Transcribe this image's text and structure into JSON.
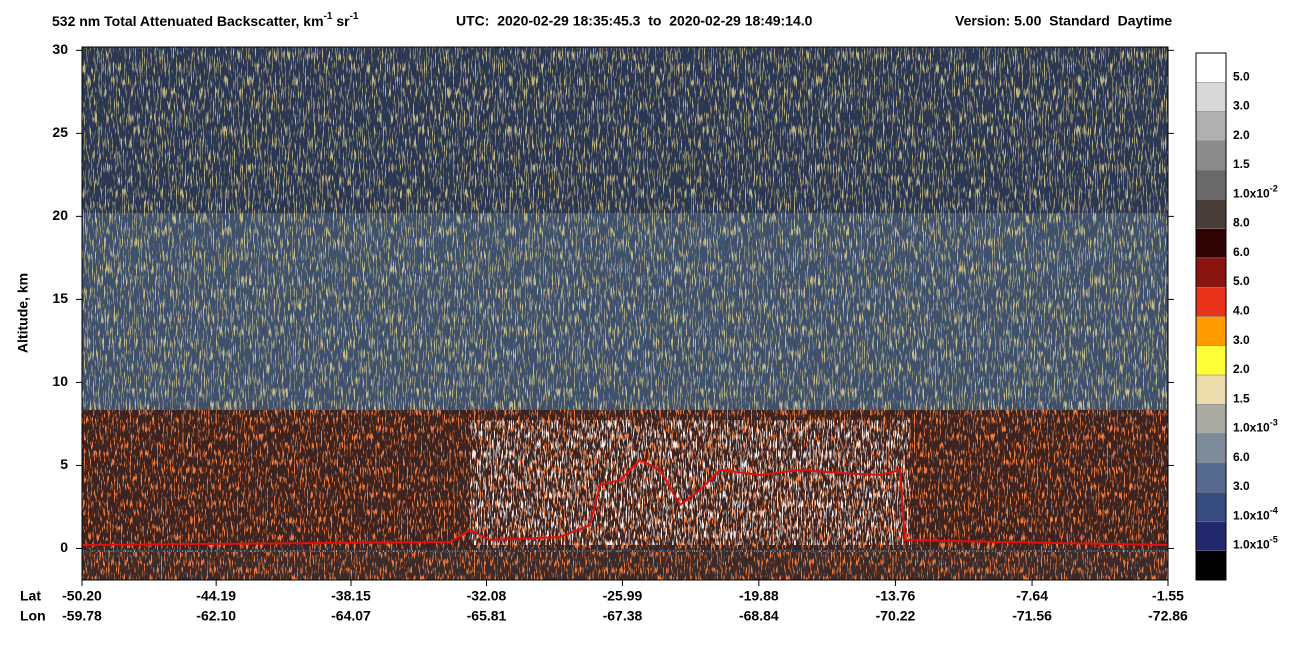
{
  "chart_data": {
    "type": "curtain",
    "title": {
      "main": "532 nm Total Attenuated Backscatter, km",
      "exp1": "-1",
      "unit2": " sr",
      "exp2": "-1"
    },
    "utc": "UTC:  2020-02-29 18:35:45.3  to  2020-02-29 18:49:14.0",
    "version": "Version: 5.00  Standard  Daytime",
    "ylabel": "Altitude, km",
    "ylim": [
      -1.9,
      30.2
    ],
    "yticks": [
      0,
      5,
      10,
      15,
      20,
      25,
      30
    ],
    "xlim": [
      -50.2,
      -1.55
    ],
    "lat_label": "Lat",
    "lon_label": "Lon",
    "xticks": [
      {
        "value": -50.2,
        "label": "-50.20"
      },
      {
        "value": -44.19,
        "label": "-44.19"
      },
      {
        "value": -38.15,
        "label": "-38.15"
      },
      {
        "value": -32.08,
        "label": "-32.08"
      },
      {
        "value": -25.99,
        "label": "-25.99"
      },
      {
        "value": -19.88,
        "label": "-19.88"
      },
      {
        "value": -13.76,
        "label": "-13.76"
      },
      {
        "value": -7.64,
        "label": "-7.64"
      },
      {
        "value": -1.55,
        "label": "-1.55"
      }
    ],
    "lon_labels": [
      "-59.78",
      "-62.10",
      "-64.07",
      "-65.81",
      "-67.38",
      "-68.84",
      "-70.22",
      "-71.56",
      "-72.86"
    ],
    "colorbar": [
      {
        "color": "#ffffff",
        "label": "5.0"
      },
      {
        "color": "#d8d8d8",
        "label": "3.0"
      },
      {
        "color": "#b0b0b0",
        "label": "2.0"
      },
      {
        "color": "#8c8c8c",
        "label": "1.5"
      },
      {
        "color": "#696969",
        "label": "1.0x10",
        "exponent": "-2"
      },
      {
        "color": "#4a3e3a",
        "label": "8.0"
      },
      {
        "color": "#300404",
        "label": "6.0"
      },
      {
        "color": "#8a1410",
        "label": "5.0"
      },
      {
        "color": "#e8321a",
        "label": "4.0"
      },
      {
        "color": "#ff9a00",
        "label": "3.0"
      },
      {
        "color": "#ffff3a",
        "label": "2.0"
      },
      {
        "color": "#ecdcac",
        "label": "1.5"
      },
      {
        "color": "#a9aaa2",
        "label": "1.0x10",
        "exponent": "-3"
      },
      {
        "color": "#7d8b9a",
        "label": "6.0"
      },
      {
        "color": "#56698e",
        "label": "3.0"
      },
      {
        "color": "#364c80",
        "label": "1.0x10",
        "exponent": "-4"
      },
      {
        "color": "#22276e",
        "label": "1.0x10",
        "exponent": "-5"
      },
      {
        "color": "#000000"
      }
    ]
  }
}
